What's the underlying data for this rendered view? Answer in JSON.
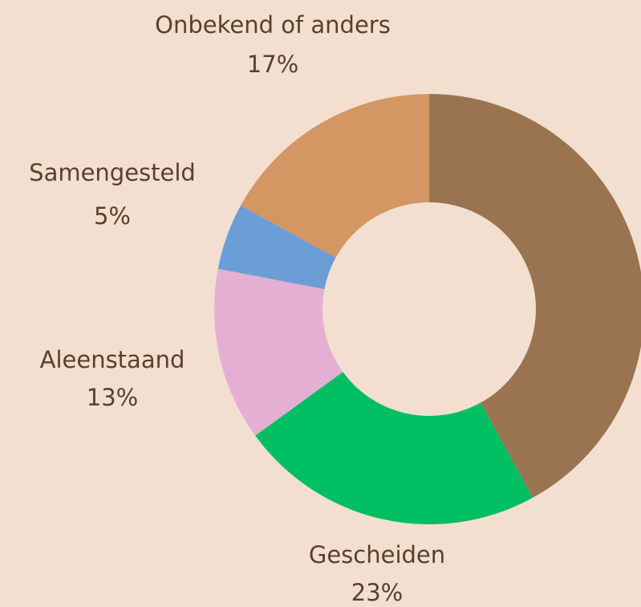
{
  "chart_data": {
    "type": "donut",
    "categories": [
      null,
      "Gescheiden",
      "Aleenstaand",
      "Samengesteld",
      "Onbekend of anders"
    ],
    "values": [
      42,
      23,
      13,
      5,
      17
    ],
    "value_labels": [
      null,
      "23%",
      "13%",
      "5%",
      "17%"
    ],
    "colors": [
      "#9a7350",
      "#00bf63",
      "#e5afd3",
      "#6b9ed6",
      "#d49663"
    ]
  }
}
